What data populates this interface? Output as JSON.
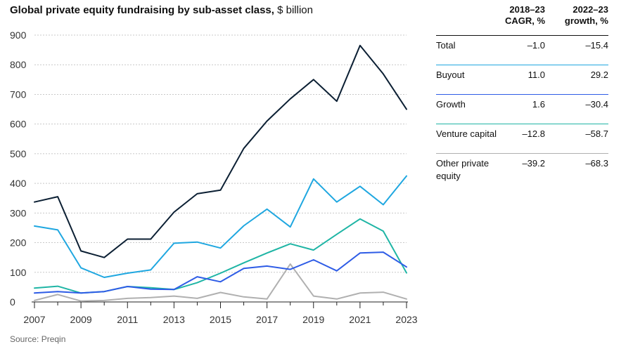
{
  "title": {
    "main": "Global private equity fundraising by sub-asset class,",
    "unit": "$ billion"
  },
  "source": "Source: Preqin",
  "table": {
    "headers": [
      {
        "line1": "2018–23",
        "line2": "CAGR, %"
      },
      {
        "line1": "2022–23",
        "line2": "growth, %"
      }
    ],
    "rows": [
      {
        "label": "Total",
        "cagr": "–1.0",
        "growth": "–15.4",
        "color": "#0b1f33"
      },
      {
        "label": "Buyout",
        "cagr": "11.0",
        "growth": "29.2",
        "color": "#1fa7e0"
      },
      {
        "label": "Growth",
        "cagr": "1.6",
        "growth": "–30.4",
        "color": "#2e5ce6"
      },
      {
        "label": "Venture capital",
        "cagr": "–12.8",
        "growth": "–58.7",
        "color": "#1fb5a5"
      },
      {
        "label": "Other private equity",
        "cagr": "–39.2",
        "growth": "–68.3",
        "color": "#b0b0b0"
      }
    ]
  },
  "chart_data": {
    "type": "line",
    "x": [
      2007,
      2008,
      2009,
      2010,
      2011,
      2012,
      2013,
      2014,
      2015,
      2016,
      2017,
      2018,
      2019,
      2020,
      2021,
      2022,
      2023
    ],
    "xticks": [
      "2007",
      "2009",
      "2011",
      "2013",
      "2015",
      "2017",
      "2019",
      "2021",
      "2023"
    ],
    "ylim": [
      0,
      900
    ],
    "yticks": [
      "0",
      "100",
      "200",
      "300",
      "400",
      "500",
      "600",
      "700",
      "800",
      "900"
    ],
    "grid": true,
    "series": [
      {
        "name": "Other private equity",
        "color": "#b0b0b0",
        "values": [
          5,
          25,
          3,
          5,
          12,
          15,
          20,
          12,
          32,
          17,
          10,
          128,
          20,
          10,
          30,
          33,
          10
        ]
      },
      {
        "name": "Venture capital",
        "color": "#1fb5a5",
        "values": [
          47,
          53,
          30,
          35,
          52,
          48,
          42,
          65,
          97,
          132,
          165,
          196,
          175,
          228,
          280,
          239,
          98
        ]
      },
      {
        "name": "Growth",
        "color": "#2e5ce6",
        "values": [
          30,
          35,
          30,
          35,
          52,
          43,
          42,
          85,
          68,
          113,
          121,
          110,
          142,
          105,
          165,
          168,
          118
        ]
      },
      {
        "name": "Buyout",
        "color": "#1fa7e0",
        "values": [
          256,
          243,
          115,
          83,
          97,
          108,
          198,
          202,
          182,
          257,
          313,
          253,
          415,
          337,
          390,
          328,
          425
        ]
      },
      {
        "name": "Total",
        "color": "#0b1f33",
        "values": [
          337,
          355,
          172,
          150,
          212,
          212,
          303,
          365,
          377,
          518,
          610,
          685,
          750,
          677,
          865,
          769,
          650
        ]
      }
    ]
  }
}
